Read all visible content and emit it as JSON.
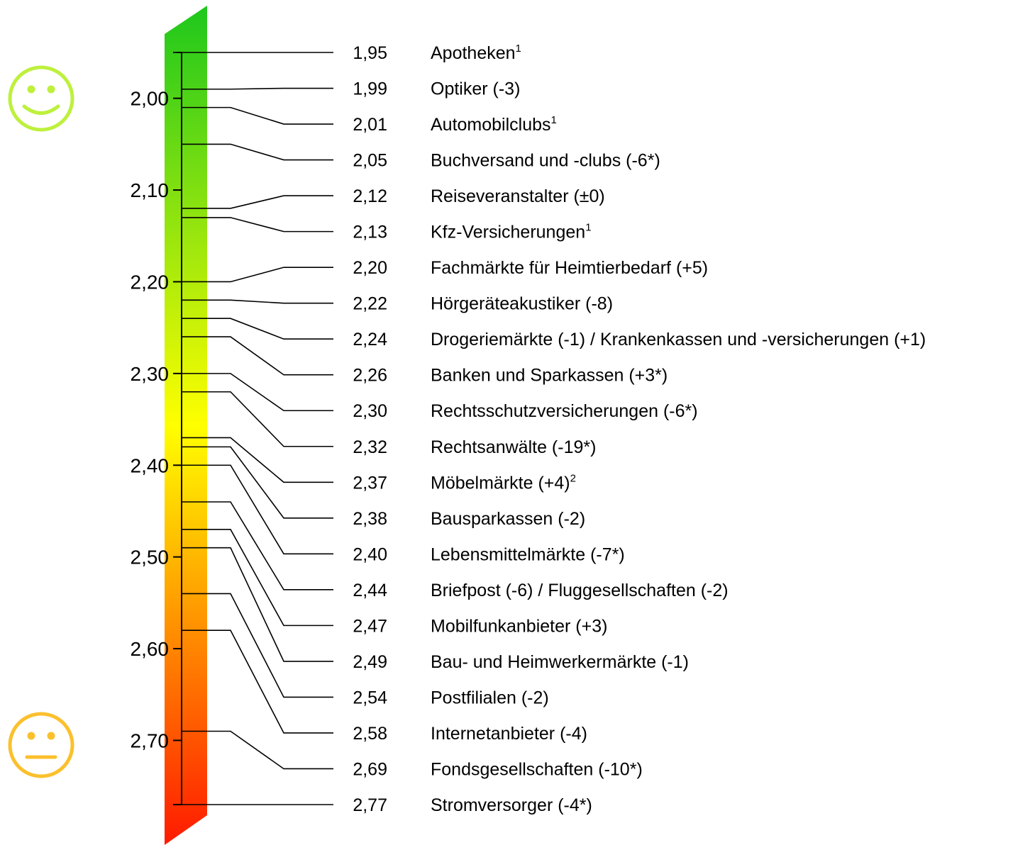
{
  "chart_data": {
    "type": "scale",
    "axis": {
      "min": 1.95,
      "max": 2.77,
      "ticks": [
        2.0,
        2.1,
        2.2,
        2.3,
        2.4,
        2.5,
        2.6,
        2.7
      ],
      "tick_labels": [
        "2,00",
        "2,10",
        "2,20",
        "2,30",
        "2,40",
        "2,50",
        "2,60",
        "2,70"
      ],
      "direction": "top-to-bottom"
    },
    "gradient_colors": [
      "#1dc71d",
      "#ffff00",
      "#ff1a00"
    ],
    "items": [
      {
        "value": 1.95,
        "value_label": "1,95",
        "label": "Apotheken",
        "sup": "1"
      },
      {
        "value": 1.99,
        "value_label": "1,99",
        "label": "Optiker (-3)",
        "sup": ""
      },
      {
        "value": 2.01,
        "value_label": "2,01",
        "label": "Automobilclubs",
        "sup": "1"
      },
      {
        "value": 2.05,
        "value_label": "2,05",
        "label": "Buchversand und -clubs (-6*)",
        "sup": ""
      },
      {
        "value": 2.12,
        "value_label": "2,12",
        "label": "Reiseveranstalter (±0)",
        "sup": ""
      },
      {
        "value": 2.13,
        "value_label": "2,13",
        "label": "Kfz-Versicherungen",
        "sup": "1"
      },
      {
        "value": 2.2,
        "value_label": "2,20",
        "label": "Fachmärkte für Heimtierbedarf (+5)",
        "sup": ""
      },
      {
        "value": 2.22,
        "value_label": "2,22",
        "label": "Hörgeräteakustiker (-8)",
        "sup": ""
      },
      {
        "value": 2.24,
        "value_label": "2,24",
        "label": "Drogeriemärkte (-1) / Krankenkassen und -versicherungen (+1)",
        "sup": ""
      },
      {
        "value": 2.26,
        "value_label": "2,26",
        "label": "Banken und Sparkassen (+3*)",
        "sup": ""
      },
      {
        "value": 2.3,
        "value_label": "2,30",
        "label": "Rechtsschutzversicherungen (-6*)",
        "sup": ""
      },
      {
        "value": 2.32,
        "value_label": "2,32",
        "label": "Rechtsanwälte (-19*)",
        "sup": ""
      },
      {
        "value": 2.37,
        "value_label": "2,37",
        "label": "Möbelmärkte (+4)",
        "sup": "2"
      },
      {
        "value": 2.38,
        "value_label": "2,38",
        "label": "Bausparkassen (-2)",
        "sup": ""
      },
      {
        "value": 2.4,
        "value_label": "2,40",
        "label": "Lebensmittelmärkte (-7*)",
        "sup": ""
      },
      {
        "value": 2.44,
        "value_label": "2,44",
        "label": "Briefpost (-6) / Fluggesellschaften (-2)",
        "sup": ""
      },
      {
        "value": 2.47,
        "value_label": "2,47",
        "label": "Mobilfunkanbieter (+3)",
        "sup": ""
      },
      {
        "value": 2.49,
        "value_label": "2,49",
        "label": "Bau- und Heimwerkermärkte (-1)",
        "sup": ""
      },
      {
        "value": 2.54,
        "value_label": "2,54",
        "label": "Postfilialen (-2)",
        "sup": ""
      },
      {
        "value": 2.58,
        "value_label": "2,58",
        "label": "Internetanbieter (-4)",
        "sup": ""
      },
      {
        "value": 2.69,
        "value_label": "2,69",
        "label": "Fondsgesellschaften (-10*)",
        "sup": ""
      },
      {
        "value": 2.77,
        "value_label": "2,77",
        "label": "Stromversorger (-4*)",
        "sup": ""
      }
    ],
    "icons": [
      {
        "name": "smiley-happy-icon",
        "color": "#bef03c"
      },
      {
        "name": "smiley-neutral-icon",
        "color": "#fbc02d"
      }
    ]
  }
}
